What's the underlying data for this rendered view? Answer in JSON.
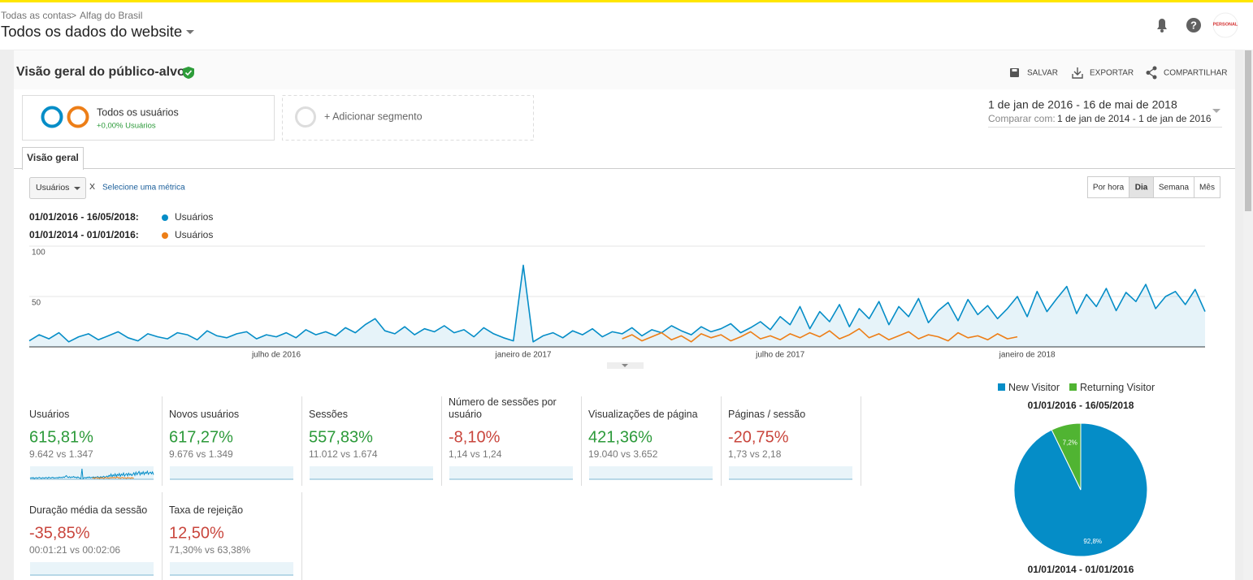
{
  "breadcrumb": [
    "Todas as contas",
    "Alfag do Brasil"
  ],
  "view_title": "Todos os dados do website",
  "avatar_text": "PERSONAL",
  "report_title": "Visão geral do público-alvo",
  "actions": [
    "SALVAR",
    "EXPORTAR",
    "COMPARTILHAR"
  ],
  "segments": {
    "name": "Todos os usuários",
    "detail": "+0,00% Usuários",
    "add": "+ Adicionar segmento"
  },
  "date_range": {
    "main": "1 de jan de 2016 - 16 de mai de 2018",
    "compare_label": "Comparar com:",
    "compare": "1 de jan de 2014 - 1 de jan de 2016"
  },
  "tab": "Visão geral",
  "metric_select": "Usuários",
  "metric_remove": "X",
  "metric_add": "Selecione uma métrica",
  "granularity": [
    "Por hora",
    "Dia",
    "Semana",
    "Mês"
  ],
  "chart_data": [
    {
      "type": "line",
      "categories": [
        null,
        null,
        null,
        null,
        null,
        null,
        null,
        null,
        null,
        null,
        null,
        null,
        null,
        null,
        null,
        null,
        null,
        null,
        null,
        null,
        null,
        null,
        null,
        null,
        null,
        "julho de 2016",
        null,
        null,
        null,
        null,
        null,
        null,
        null,
        null,
        null,
        null,
        null,
        null,
        null,
        null,
        null,
        null,
        null,
        null,
        null,
        null,
        null,
        null,
        null,
        null,
        "janeiro de 2017",
        null,
        null,
        null,
        null,
        null,
        null,
        null,
        null,
        null,
        null,
        null,
        null,
        null,
        null,
        null,
        null,
        null,
        null,
        null,
        null,
        null,
        null,
        null,
        null,
        null,
        "julho de 2017",
        null,
        null,
        null,
        null,
        null,
        null,
        null,
        null,
        null,
        null,
        null,
        null,
        null,
        null,
        null,
        null,
        null,
        null,
        null,
        null,
        null,
        null,
        null,
        null,
        "janeiro de 2018",
        null,
        null,
        null,
        null,
        null,
        null,
        null,
        null,
        null,
        null,
        null,
        null,
        null,
        null,
        null,
        null,
        null,
        null
      ],
      "series": [
        {
          "period": "01/01/2016 - 16/05/2018:",
          "name": "Usuários",
          "color": "#058dc7",
          "values": [
            6,
            12,
            8,
            14,
            5,
            10,
            13,
            7,
            11,
            15,
            9,
            6,
            13,
            10,
            8,
            14,
            12,
            7,
            16,
            11,
            9,
            13,
            15,
            8,
            12,
            10,
            14,
            9,
            17,
            12,
            15,
            11,
            19,
            14,
            22,
            28,
            16,
            13,
            20,
            12,
            18,
            15,
            21,
            14,
            17,
            10,
            19,
            13,
            9,
            6,
            81,
            5,
            11,
            14,
            9,
            16,
            12,
            18,
            10,
            15,
            13,
            19,
            11,
            17,
            14,
            21,
            16,
            12,
            20,
            15,
            18,
            23,
            14,
            19,
            25,
            17,
            30,
            22,
            40,
            18,
            35,
            25,
            42,
            20,
            38,
            28,
            45,
            22,
            40,
            30,
            48,
            24,
            36,
            44,
            26,
            47,
            32,
            41,
            28,
            38,
            50,
            30,
            55,
            35,
            48,
            60,
            33,
            52,
            40,
            58,
            36,
            54,
            45,
            62,
            38,
            50,
            55,
            42,
            57,
            35
          ]
        },
        {
          "period": "01/01/2014 - 01/01/2016:",
          "name": "Usuários",
          "color": "#ed7e17",
          "values": [
            null,
            null,
            null,
            null,
            null,
            null,
            null,
            null,
            null,
            null,
            null,
            null,
            null,
            null,
            null,
            null,
            null,
            null,
            null,
            null,
            null,
            null,
            null,
            null,
            null,
            null,
            null,
            null,
            null,
            null,
            null,
            null,
            null,
            null,
            null,
            null,
            null,
            null,
            null,
            null,
            null,
            null,
            null,
            null,
            null,
            null,
            null,
            null,
            null,
            null,
            null,
            null,
            null,
            null,
            null,
            null,
            null,
            null,
            null,
            null,
            8,
            12,
            6,
            10,
            14,
            7,
            11,
            5,
            13,
            9,
            12,
            6,
            10,
            15,
            8,
            11,
            7,
            13,
            9,
            14,
            10,
            16,
            8,
            12,
            18,
            9,
            13,
            7,
            11,
            15,
            8,
            12,
            10,
            6,
            14,
            9,
            11,
            7,
            13,
            8,
            10,
            null,
            null,
            null,
            null,
            null,
            null,
            null,
            null,
            null,
            null,
            null,
            null,
            null,
            null,
            null,
            null,
            null,
            null,
            null
          ]
        }
      ],
      "ylim": [
        0,
        100
      ],
      "yticks": [
        50,
        100
      ],
      "grid": true
    },
    {
      "type": "pie",
      "title": "01/01/2016 - 16/05/2018",
      "footer": "01/01/2014 - 01/01/2016",
      "categories": [
        "New Visitor",
        "Returning Visitor"
      ],
      "values": [
        92.8,
        7.2
      ],
      "value_labels": [
        "92,8%",
        "7,2%"
      ],
      "colors": [
        "#058dc7",
        "#50b432"
      ]
    }
  ],
  "metrics": [
    {
      "label": "Usuários",
      "change": "615,81%",
      "compare": "9.642 vs 1.347",
      "color": "#2c9a3a"
    },
    {
      "label": "Novos usuários",
      "change": "617,27%",
      "compare": "9.676 vs 1.349",
      "color": "#2c9a3a"
    },
    {
      "label": "Sessões",
      "change": "557,83%",
      "compare": "11.012 vs 1.674",
      "color": "#2c9a3a"
    },
    {
      "label": "Número de sessões por usuário",
      "change": "-8,10%",
      "compare": "1,14 vs 1,24",
      "color": "#c9463d"
    },
    {
      "label": "Visualizações de página",
      "change": "421,36%",
      "compare": "19.040 vs 3.652",
      "color": "#2c9a3a"
    },
    {
      "label": "Páginas / sessão",
      "change": "-20,75%",
      "compare": "1,73 vs 2,18",
      "color": "#c9463d"
    },
    {
      "label": "Duração média da sessão",
      "change": "-35,85%",
      "compare": "00:01:21 vs 00:02:06",
      "color": "#c9463d"
    },
    {
      "label": "Taxa de rejeição",
      "change": "12,50%",
      "compare": "71,30% vs 63,38%",
      "color": "#c9463d"
    }
  ]
}
